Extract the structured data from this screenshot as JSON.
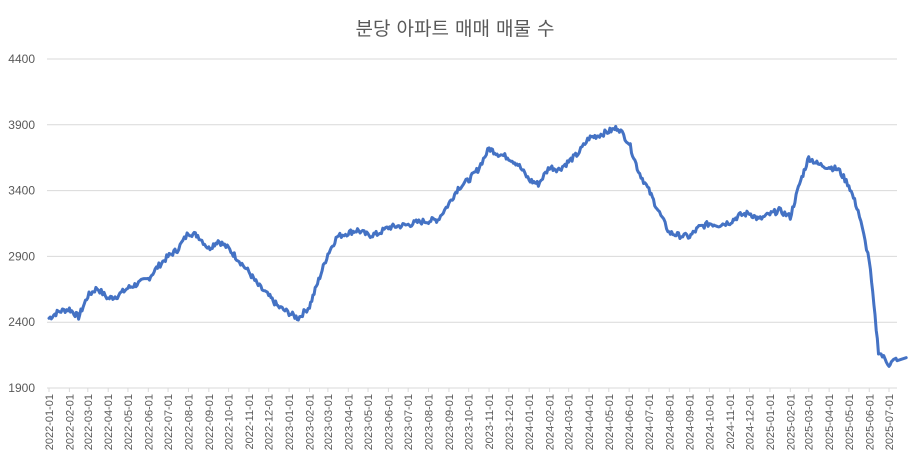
{
  "chart_data": {
    "type": "line",
    "title": "분당 아파트 매매 매물 수",
    "xlabel": "",
    "ylabel": "",
    "ylim": [
      1900,
      4400
    ],
    "yticks": [
      1900,
      2400,
      2900,
      3400,
      3900,
      4400
    ],
    "grid": true,
    "legend": "none",
    "x_tick_labels": [
      "2022-01-01",
      "2022-02-01",
      "2022-03-01",
      "2022-04-01",
      "2022-05-01",
      "2022-06-01",
      "2022-07-01",
      "2022-08-01",
      "2022-09-01",
      "2022-10-01",
      "2022-11-01",
      "2022-12-01",
      "2023-01-01",
      "2023-02-01",
      "2023-03-01",
      "2023-04-01",
      "2023-05-01",
      "2023-06-01",
      "2023-07-01",
      "2023-08-01",
      "2023-09-01",
      "2023-10-01",
      "2023-11-01",
      "2023-12-01",
      "2024-01-01",
      "2024-02-01",
      "2024-03-01",
      "2024-04-01",
      "2024-05-01",
      "2024-06-01",
      "2024-07-01",
      "2024-08-01",
      "2024-09-01",
      "2024-10-01",
      "2024-11-01",
      "2024-12-01",
      "2025-01-01",
      "2025-02-01",
      "2025-03-01",
      "2025-04-01",
      "2025-05-01",
      "2025-06-01",
      "2025-07-01"
    ],
    "series": [
      {
        "color": "#4472c4",
        "x": [
          "2022-01-01",
          "2022-01-15",
          "2022-02-01",
          "2022-02-15",
          "2022-03-01",
          "2022-03-15",
          "2022-04-01",
          "2022-04-15",
          "2022-05-01",
          "2022-05-15",
          "2022-06-01",
          "2022-06-15",
          "2022-07-01",
          "2022-07-15",
          "2022-08-01",
          "2022-08-15",
          "2022-09-01",
          "2022-09-15",
          "2022-10-01",
          "2022-10-15",
          "2022-11-01",
          "2022-11-15",
          "2022-12-01",
          "2022-12-15",
          "2023-01-01",
          "2023-01-15",
          "2023-02-01",
          "2023-02-15",
          "2023-03-01",
          "2023-03-15",
          "2023-04-01",
          "2023-04-15",
          "2023-05-01",
          "2023-05-15",
          "2023-06-01",
          "2023-06-15",
          "2023-07-01",
          "2023-07-15",
          "2023-08-01",
          "2023-08-15",
          "2023-09-01",
          "2023-09-15",
          "2023-10-01",
          "2023-10-15",
          "2023-11-01",
          "2023-11-15",
          "2023-12-01",
          "2023-12-15",
          "2024-01-01",
          "2024-01-15",
          "2024-02-01",
          "2024-02-15",
          "2024-03-01",
          "2024-03-15",
          "2024-04-01",
          "2024-04-15",
          "2024-05-01",
          "2024-05-15",
          "2024-06-01",
          "2024-06-15",
          "2024-07-01",
          "2024-07-15",
          "2024-08-01",
          "2024-08-15",
          "2024-09-01",
          "2024-09-15",
          "2024-10-01",
          "2024-10-15",
          "2024-11-01",
          "2024-11-15",
          "2024-12-01",
          "2024-12-15",
          "2025-01-01",
          "2025-01-15",
          "2025-02-01",
          "2025-02-15",
          "2025-03-01",
          "2025-03-15",
          "2025-04-01",
          "2025-04-15",
          "2025-05-01",
          "2025-05-15",
          "2025-06-01",
          "2025-06-15",
          "2025-07-01",
          "2025-07-15"
        ],
        "values": [
          2430,
          2480,
          2500,
          2440,
          2600,
          2660,
          2580,
          2600,
          2660,
          2690,
          2730,
          2820,
          2900,
          2950,
          3080,
          3060,
          2960,
          3020,
          2960,
          2880,
          2780,
          2680,
          2600,
          2520,
          2470,
          2430,
          2520,
          2720,
          2920,
          3050,
          3080,
          3100,
          3060,
          3070,
          3120,
          3130,
          3140,
          3160,
          3170,
          3180,
          3300,
          3420,
          3480,
          3560,
          3720,
          3680,
          3650,
          3600,
          3480,
          3450,
          3580,
          3560,
          3620,
          3680,
          3800,
          3820,
          3850,
          3880,
          3760,
          3550,
          3400,
          3250,
          3080,
          3060,
          3050,
          3120,
          3150,
          3140,
          3160,
          3210,
          3230,
          3180,
          3220,
          3250,
          3200,
          3450,
          3650,
          3600,
          3580,
          3560,
          3440,
          3250,
          2870,
          2180,
          2080,
          2130
        ]
      }
    ]
  }
}
